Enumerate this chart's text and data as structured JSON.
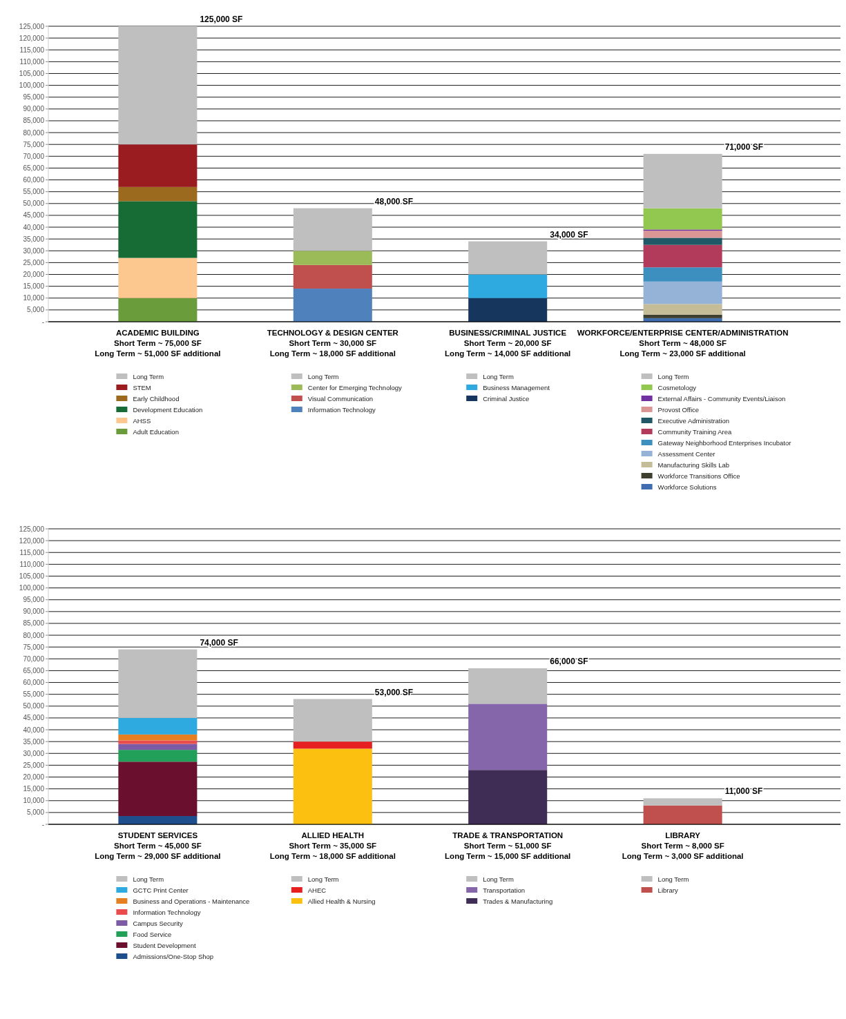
{
  "chart_data": [
    {
      "type": "bar",
      "stacked": true,
      "grid": "y",
      "legend": "bottom",
      "categories": [
        "ACADEMIC BUILDING\nShort Term ~ 75,000 SF\nLong Term ~ 51,000 SF additional",
        "TECHNOLOGY & DESIGN CENTER\nShort Term ~ 30,000 SF\nLong Term ~ 18,000 SF additional",
        "BUSINESS/CRIMINAL JUSTICE\nShort Term ~ 20,000 SF\nLong Term ~ 14,000 SF additional",
        "WORKFORCE/ENTERPRISE CENTER/ADMINISTRATION\nShort Term ~ 48,000 SF\nLong Term ~ 23,000 SF additional"
      ],
      "ylim": [
        0,
        125000
      ],
      "yticks": [
        {
          "value": 0,
          "label": "-"
        },
        {
          "value": 5000,
          "label": "5,000"
        },
        {
          "value": 10000,
          "label": "10,000"
        },
        {
          "value": 15000,
          "label": "15,000"
        },
        {
          "value": 20000,
          "label": "20,000"
        },
        {
          "value": 25000,
          "label": "25,000"
        },
        {
          "value": 30000,
          "label": "30,000"
        },
        {
          "value": 35000,
          "label": "35,000"
        },
        {
          "value": 40000,
          "label": "40,000"
        },
        {
          "value": 45000,
          "label": "45,000"
        },
        {
          "value": 50000,
          "label": "50,000"
        },
        {
          "value": 55000,
          "label": "55,000"
        },
        {
          "value": 60000,
          "label": "60,000"
        },
        {
          "value": 65000,
          "label": "65,000"
        },
        {
          "value": 70000,
          "label": "70,000"
        },
        {
          "value": 75000,
          "label": "75,000"
        },
        {
          "value": 80000,
          "label": "80,000"
        },
        {
          "value": 85000,
          "label": "85,000"
        },
        {
          "value": 90000,
          "label": "90,000"
        },
        {
          "value": 95000,
          "label": "95,000"
        },
        {
          "value": 100000,
          "label": "100,000"
        },
        {
          "value": 105000,
          "label": "105,000"
        },
        {
          "value": 110000,
          "label": "110,000"
        },
        {
          "value": 115000,
          "label": "115,000"
        },
        {
          "value": 120000,
          "label": "120,000"
        },
        {
          "value": 125000,
          "label": "125,000"
        }
      ],
      "totals": [
        "125,000 SF",
        "48,000 SF",
        "34,000 SF",
        "71,000 SF"
      ],
      "series": [
        {
          "name": "Adult Education",
          "color": "#6a9c3c",
          "values": [
            10000,
            null,
            null,
            null
          ]
        },
        {
          "name": "AHSS",
          "color": "#fcc890",
          "values": [
            17000,
            null,
            null,
            null
          ]
        },
        {
          "name": "Development Education",
          "color": "#176b34",
          "values": [
            24000,
            null,
            null,
            null
          ]
        },
        {
          "name": "Early Childhood",
          "color": "#9c6a1f",
          "values": [
            6000,
            null,
            null,
            null
          ]
        },
        {
          "name": "STEM",
          "color": "#9b1c20",
          "values": [
            18000,
            null,
            null,
            null
          ]
        },
        {
          "name": "Information Technology",
          "color": "#4f81bd",
          "values": [
            null,
            14000,
            null,
            null
          ]
        },
        {
          "name": "Visual Communication",
          "color": "#c0504d",
          "values": [
            null,
            10000,
            null,
            null
          ]
        },
        {
          "name": "Center for Emerging Technology",
          "color": "#9bbb59",
          "values": [
            null,
            6000,
            null,
            null
          ]
        },
        {
          "name": "Criminal Justice",
          "color": "#17365d",
          "values": [
            null,
            null,
            10000,
            null
          ]
        },
        {
          "name": "Business Management",
          "color": "#2eaae1",
          "values": [
            null,
            null,
            10000,
            null
          ]
        },
        {
          "name": "Workforce Solutions",
          "color": "#3f6eb0",
          "values": [
            null,
            null,
            null,
            1500
          ]
        },
        {
          "name": "Workforce Transitions Office",
          "color": "#3f3f2f",
          "values": [
            null,
            null,
            null,
            1500
          ]
        },
        {
          "name": "Manufacturing Skills Lab",
          "color": "#c4bd97",
          "values": [
            null,
            null,
            null,
            4500
          ]
        },
        {
          "name": "Assessment Center",
          "color": "#95b3d7",
          "values": [
            null,
            null,
            null,
            9500
          ]
        },
        {
          "name": "Gateway Neighborhood Enterprises Incubator",
          "color": "#3c8fbf",
          "values": [
            null,
            null,
            null,
            6000
          ]
        },
        {
          "name": "Community Training Area",
          "color": "#b23a5a",
          "values": [
            null,
            null,
            null,
            9500
          ]
        },
        {
          "name": "Executive Administration",
          "color": "#215867",
          "values": [
            null,
            null,
            null,
            3000
          ]
        },
        {
          "name": "Provost Office",
          "color": "#d99694",
          "values": [
            null,
            null,
            null,
            3000
          ]
        },
        {
          "name": "External Affairs - Community Events/Liaison",
          "color": "#7030a0",
          "values": [
            null,
            null,
            null,
            500
          ]
        },
        {
          "name": "Cosmetology",
          "color": "#92c84f",
          "values": [
            null,
            null,
            null,
            9000
          ]
        },
        {
          "name": "Long Term",
          "color": "#bfbfbf",
          "values": [
            50000,
            18000,
            14000,
            23000
          ]
        }
      ]
    },
    {
      "type": "bar",
      "stacked": true,
      "grid": "y",
      "legend": "bottom",
      "categories": [
        "STUDENT SERVICES\nShort Term ~ 45,000 SF\nLong Term ~ 29,000 SF additional",
        "ALLIED HEALTH\nShort Term ~ 35,000 SF\nLong Term ~ 18,000 SF additional",
        "TRADE & TRANSPORTATION\nShort Term ~ 51,000 SF\nLong Term ~ 15,000 SF additional",
        "LIBRARY\nShort Term ~ 8,000 SF\nLong Term ~ 3,000 SF additional"
      ],
      "ylim": [
        0,
        125000
      ],
      "yticks": [
        {
          "value": 0,
          "label": "-"
        },
        {
          "value": 5000,
          "label": "5,000"
        },
        {
          "value": 10000,
          "label": "10,000"
        },
        {
          "value": 15000,
          "label": "15,000"
        },
        {
          "value": 20000,
          "label": "20,000"
        },
        {
          "value": 25000,
          "label": "25,000"
        },
        {
          "value": 30000,
          "label": "30,000"
        },
        {
          "value": 35000,
          "label": "35,000"
        },
        {
          "value": 40000,
          "label": "40,000"
        },
        {
          "value": 45000,
          "label": "45,000"
        },
        {
          "value": 50000,
          "label": "50,000"
        },
        {
          "value": 55000,
          "label": "55,000"
        },
        {
          "value": 60000,
          "label": "60,000"
        },
        {
          "value": 65000,
          "label": "65,000"
        },
        {
          "value": 70000,
          "label": "70,000"
        },
        {
          "value": 75000,
          "label": "75,000"
        },
        {
          "value": 80000,
          "label": "80,000"
        },
        {
          "value": 85000,
          "label": "85,000"
        },
        {
          "value": 90000,
          "label": "90,000"
        },
        {
          "value": 95000,
          "label": "95,000"
        },
        {
          "value": 100000,
          "label": "100,000"
        },
        {
          "value": 105000,
          "label": "105,000"
        },
        {
          "value": 110000,
          "label": "110,000"
        },
        {
          "value": 115000,
          "label": "115,000"
        },
        {
          "value": 120000,
          "label": "120,000"
        },
        {
          "value": 125000,
          "label": "125,000"
        }
      ],
      "totals": [
        "74,000 SF",
        "53,000 SF",
        "66,000 SF",
        "11,000 SF"
      ],
      "series": [
        {
          "name": "Admissions/One-Stop Shop",
          "color": "#1f4e8c",
          "values": [
            3500,
            null,
            null,
            null
          ]
        },
        {
          "name": "Student Development",
          "color": "#6b0f2e",
          "values": [
            23000,
            null,
            null,
            null
          ]
        },
        {
          "name": "Food Service",
          "color": "#22a05a",
          "values": [
            5000,
            null,
            null,
            null
          ]
        },
        {
          "name": "Campus Security",
          "color": "#7b5aa6",
          "values": [
            2500,
            null,
            null,
            null
          ]
        },
        {
          "name": "Information Technology",
          "color": "#e84c4c",
          "values": [
            1500,
            null,
            null,
            null
          ]
        },
        {
          "name": "Business and Operations - Maintenance",
          "color": "#e67e22",
          "values": [
            2500,
            null,
            null,
            null
          ]
        },
        {
          "name": "GCTC Print Center",
          "color": "#2eaae1",
          "values": [
            7000,
            null,
            null,
            null
          ]
        },
        {
          "name": "Allied Health & Nursing",
          "color": "#fcc010",
          "values": [
            null,
            32000,
            null,
            null
          ]
        },
        {
          "name": "AHEC",
          "color": "#e62020",
          "values": [
            null,
            3000,
            null,
            null
          ]
        },
        {
          "name": "Trades & Manufacturing",
          "color": "#3f2d55",
          "values": [
            null,
            null,
            23000,
            null
          ]
        },
        {
          "name": "Transportation",
          "color": "#8566aa",
          "values": [
            null,
            null,
            28000,
            null
          ]
        },
        {
          "name": "Library",
          "color": "#c0504d",
          "values": [
            null,
            null,
            null,
            8000
          ]
        },
        {
          "name": "Long Term",
          "color": "#bfbfbf",
          "values": [
            29000,
            18000,
            15000,
            3000
          ]
        }
      ]
    }
  ]
}
